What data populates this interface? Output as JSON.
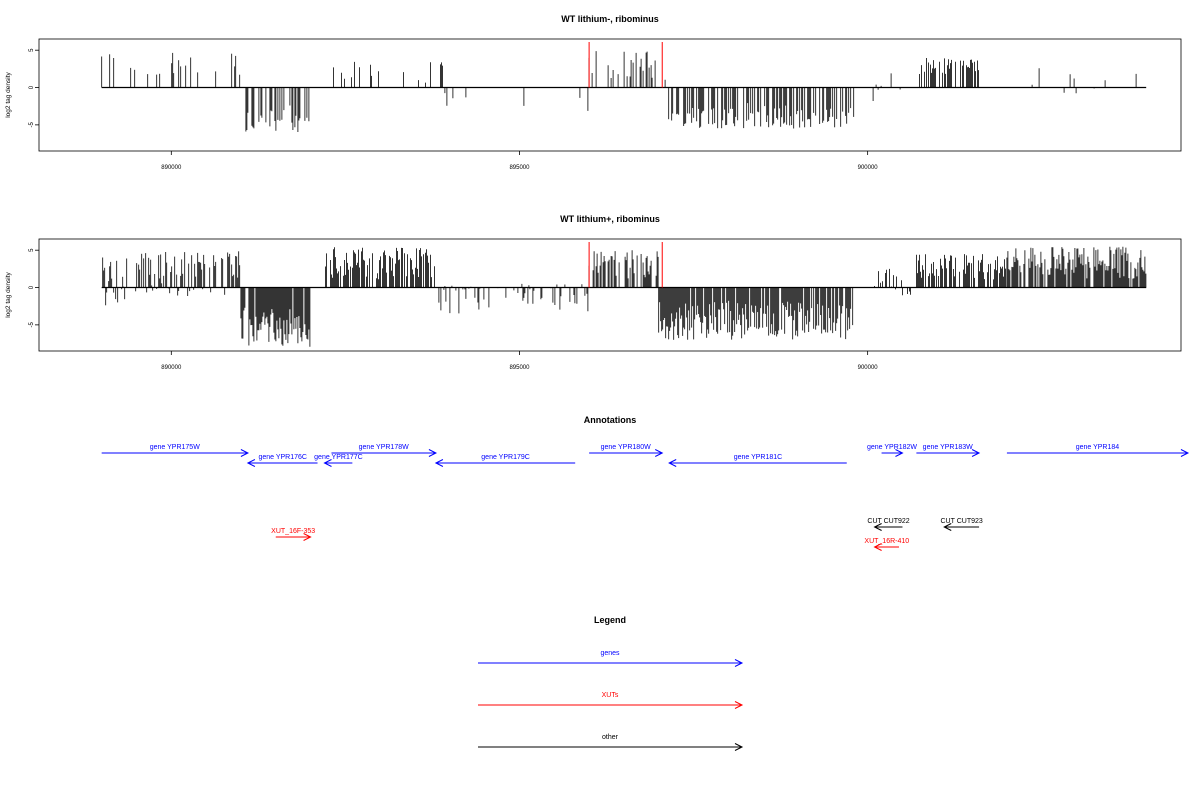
{
  "colors": {
    "genes": "#0000ff",
    "xuts": "#ff0000",
    "other": "#000000",
    "bars": "#000000",
    "marker": "#ff0000"
  },
  "chart_data": [
    {
      "type": "bar",
      "title": "WT lithium-, ribominus",
      "ylabel": "log2 tag density",
      "xlim": [
        888100,
        904500
      ],
      "ylim": [
        -8.5,
        6.5
      ],
      "xticks": [
        890000,
        895000,
        900000
      ],
      "yticks": [
        5,
        0,
        -5
      ],
      "xtick_labels": [
        "890000",
        "895000",
        "900000"
      ],
      "ytick_labels": [
        "5",
        "0",
        "-5"
      ],
      "grid": false,
      "markers_x": [
        896000,
        897050
      ],
      "signal_regions": [
        {
          "start": 889000,
          "end": 891000,
          "min": 0.5,
          "max": 5.0,
          "density": 0.12
        },
        {
          "start": 891000,
          "end": 892000,
          "min": -6.0,
          "max": -2.0,
          "density": 0.45
        },
        {
          "start": 892300,
          "end": 893900,
          "min": 0.5,
          "max": 3.5,
          "density": 0.15
        },
        {
          "start": 893900,
          "end": 896000,
          "min": -3.5,
          "max": -0.5,
          "density": 0.05
        },
        {
          "start": 896000,
          "end": 897100,
          "min": 1.0,
          "max": 5.0,
          "density": 0.35
        },
        {
          "start": 897100,
          "end": 899800,
          "min": -5.5,
          "max": -2.0,
          "density": 0.55
        },
        {
          "start": 900050,
          "end": 900500,
          "min": -2.5,
          "max": 2.0,
          "density": 0.1
        },
        {
          "start": 900700,
          "end": 901600,
          "min": 1.5,
          "max": 4.0,
          "density": 0.5
        },
        {
          "start": 901600,
          "end": 904000,
          "min": -1.0,
          "max": 3.0,
          "density": 0.05
        }
      ]
    },
    {
      "type": "bar",
      "title": "WT lithium+, ribominus",
      "ylabel": "log2 tag density",
      "xlim": [
        888100,
        904500
      ],
      "ylim": [
        -8.5,
        6.5
      ],
      "xticks": [
        890000,
        895000,
        900000
      ],
      "yticks": [
        5,
        0,
        -5
      ],
      "xtick_labels": [
        "890000",
        "895000",
        "900000"
      ],
      "ytick_labels": [
        "5",
        "0",
        "-5"
      ],
      "grid": false,
      "markers_x": [
        896000,
        897050
      ],
      "signal_regions": [
        {
          "start": 889000,
          "end": 891000,
          "min": -2.5,
          "max": 5.0,
          "density": 0.6
        },
        {
          "start": 891000,
          "end": 892000,
          "min": -8.0,
          "max": -2.0,
          "density": 0.9
        },
        {
          "start": 892200,
          "end": 893800,
          "min": 1.0,
          "max": 5.5,
          "density": 0.7
        },
        {
          "start": 893800,
          "end": 896000,
          "min": -3.5,
          "max": 0.5,
          "density": 0.3
        },
        {
          "start": 896000,
          "end": 897000,
          "min": 1.0,
          "max": 5.0,
          "density": 0.6
        },
        {
          "start": 897000,
          "end": 899800,
          "min": -7.0,
          "max": -1.5,
          "density": 0.9
        },
        {
          "start": 900100,
          "end": 900700,
          "min": -1.5,
          "max": 2.5,
          "density": 0.3
        },
        {
          "start": 900700,
          "end": 902000,
          "min": 1.0,
          "max": 4.5,
          "density": 0.6
        },
        {
          "start": 902000,
          "end": 904000,
          "min": 1.0,
          "max": 5.5,
          "density": 0.85
        }
      ]
    }
  ],
  "annotations": {
    "title": "Annotations",
    "features": [
      {
        "label": "gene YPR175W",
        "start": 889000,
        "end": 891100,
        "strand": "+",
        "type": "gene"
      },
      {
        "label": "gene YPR176C",
        "start": 891100,
        "end": 892100,
        "strand": "-",
        "type": "gene"
      },
      {
        "label": "gene YPR177C",
        "start": 892200,
        "end": 892600,
        "strand": "-",
        "type": "gene"
      },
      {
        "label": "gene YPR178W",
        "start": 892300,
        "end": 893800,
        "strand": "+",
        "type": "gene"
      },
      {
        "label": "gene YPR179C",
        "start": 893800,
        "end": 895800,
        "strand": "-",
        "type": "gene"
      },
      {
        "label": "gene YPR180W",
        "start": 896000,
        "end": 897050,
        "strand": "+",
        "type": "gene"
      },
      {
        "label": "gene YPR181C",
        "start": 897150,
        "end": 899700,
        "strand": "-",
        "type": "gene"
      },
      {
        "label": "gene YPR182W",
        "start": 900200,
        "end": 900500,
        "strand": "+",
        "type": "gene"
      },
      {
        "label": "gene YPR183W",
        "start": 900700,
        "end": 901600,
        "strand": "+",
        "type": "gene"
      },
      {
        "label": "gene YPR184",
        "start": 902000,
        "end": 904600,
        "strand": "+",
        "type": "gene"
      },
      {
        "label": "XUT_16F-353",
        "start": 891500,
        "end": 892000,
        "strand": "+",
        "type": "xut"
      },
      {
        "label": "CUT CUT922",
        "start": 900100,
        "end": 900500,
        "strand": "-",
        "type": "other"
      },
      {
        "label": "CUT CUT923",
        "start": 901100,
        "end": 901600,
        "strand": "-",
        "type": "other"
      },
      {
        "label": "XUT_16R-410",
        "start": 900100,
        "end": 900450,
        "strand": "-",
        "type": "xut"
      }
    ]
  },
  "legend": {
    "title": "Legend",
    "items": [
      {
        "label": "genes",
        "type": "gene"
      },
      {
        "label": "XUTs",
        "type": "xut"
      },
      {
        "label": "other",
        "type": "other"
      }
    ]
  }
}
